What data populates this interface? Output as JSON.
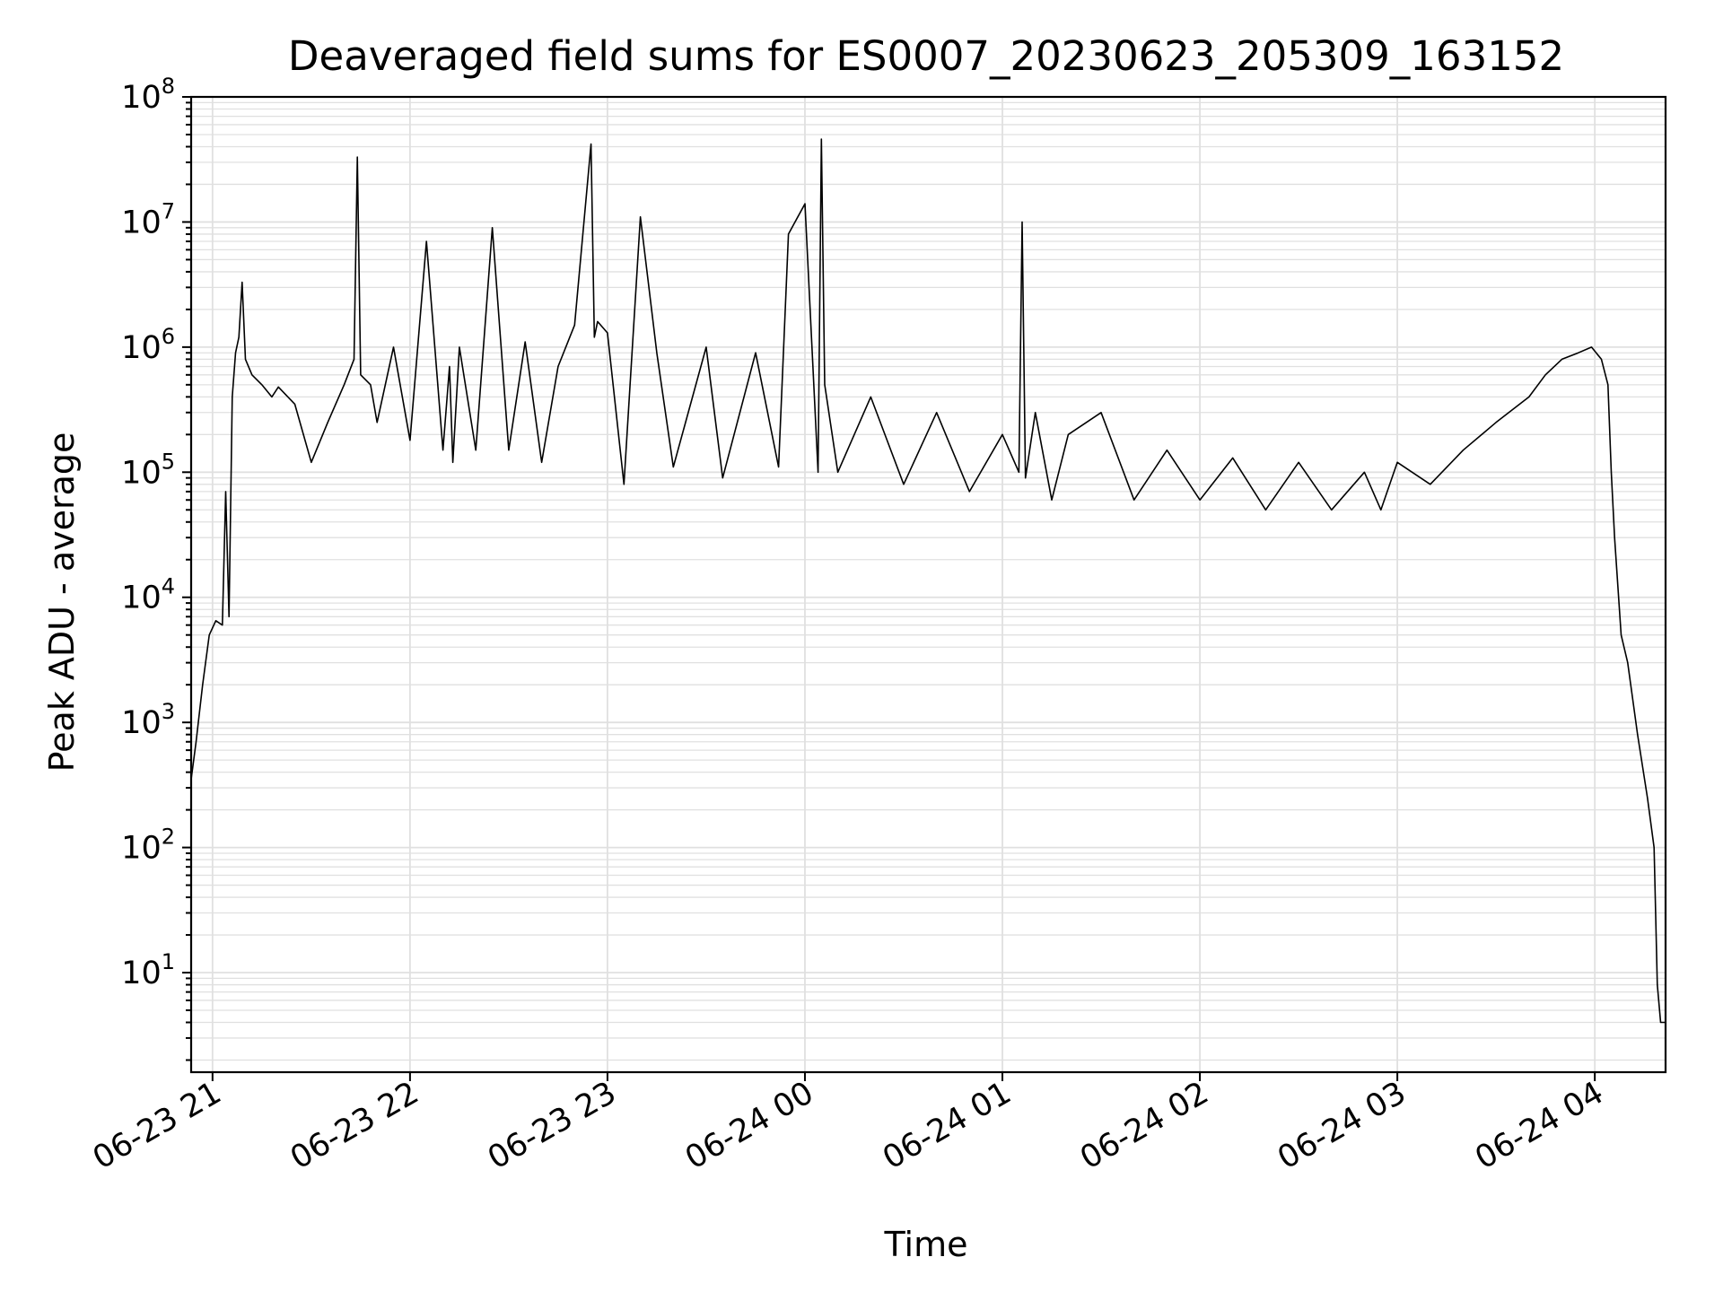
{
  "chart_data": {
    "type": "line",
    "title": "Deaveraged field sums for ES0007_20230623_205309_163152",
    "xlabel": "Time",
    "ylabel": "Peak ADU - average",
    "yscale": "log",
    "grid": true,
    "legend": "none",
    "line_color": "#000000",
    "grid_color": "#e0e0e0",
    "xlim": [
      "2023-06-23 20:53:30",
      "2023-06-24 04:21:30"
    ],
    "ylim": [
      1.6,
      100000000
    ],
    "x_tick_labels": [
      "06-23 21",
      "06-23 22",
      "06-23 23",
      "06-24 00",
      "06-24 01",
      "06-24 02",
      "06-24 03",
      "06-24 04"
    ],
    "y_tick_labels": [
      {
        "base": "10",
        "exp": "1"
      },
      {
        "base": "10",
        "exp": "2"
      },
      {
        "base": "10",
        "exp": "3"
      },
      {
        "base": "10",
        "exp": "4"
      },
      {
        "base": "10",
        "exp": "5"
      },
      {
        "base": "10",
        "exp": "6"
      },
      {
        "base": "10",
        "exp": "7"
      },
      {
        "base": "10",
        "exp": "8"
      }
    ],
    "series": [
      {
        "x": [
          "2023-06-23 20:53:30",
          "2023-06-23 20:55:00",
          "2023-06-23 20:57:00",
          "2023-06-23 20:59:00",
          "2023-06-23 21:01:00",
          "2023-06-23 21:03:00",
          "2023-06-23 21:04:00",
          "2023-06-23 21:05:00",
          "2023-06-23 21:06:00",
          "2023-06-23 21:07:00",
          "2023-06-23 21:08:00",
          "2023-06-23 21:09:00",
          "2023-06-23 21:10:00",
          "2023-06-23 21:12:00",
          "2023-06-23 21:15:00",
          "2023-06-23 21:18:00",
          "2023-06-23 21:20:00",
          "2023-06-23 21:25:00",
          "2023-06-23 21:30:00",
          "2023-06-23 21:35:00",
          "2023-06-23 21:40:00",
          "2023-06-23 21:43:00",
          "2023-06-23 21:44:00",
          "2023-06-23 21:45:00",
          "2023-06-23 21:48:00",
          "2023-06-23 21:50:00",
          "2023-06-23 21:55:00",
          "2023-06-23 22:00:00",
          "2023-06-23 22:05:00",
          "2023-06-23 22:10:00",
          "2023-06-23 22:12:00",
          "2023-06-23 22:13:00",
          "2023-06-23 22:15:00",
          "2023-06-23 22:20:00",
          "2023-06-23 22:25:00",
          "2023-06-23 22:30:00",
          "2023-06-23 22:35:00",
          "2023-06-23 22:40:00",
          "2023-06-23 22:45:00",
          "2023-06-23 22:50:00",
          "2023-06-23 22:55:00",
          "2023-06-23 22:56:00",
          "2023-06-23 22:57:00",
          "2023-06-23 23:00:00",
          "2023-06-23 23:05:00",
          "2023-06-23 23:10:00",
          "2023-06-23 23:15:00",
          "2023-06-23 23:20:00",
          "2023-06-23 23:30:00",
          "2023-06-23 23:35:00",
          "2023-06-23 23:45:00",
          "2023-06-23 23:52:00",
          "2023-06-23 23:55:00",
          "2023-06-24 00:00:00",
          "2023-06-24 00:04:00",
          "2023-06-24 00:05:00",
          "2023-06-24 00:06:00",
          "2023-06-24 00:10:00",
          "2023-06-24 00:20:00",
          "2023-06-24 00:30:00",
          "2023-06-24 00:40:00",
          "2023-06-24 00:50:00",
          "2023-06-24 01:00:00",
          "2023-06-24 01:05:00",
          "2023-06-24 01:06:00",
          "2023-06-24 01:07:00",
          "2023-06-24 01:10:00",
          "2023-06-24 01:15:00",
          "2023-06-24 01:20:00",
          "2023-06-24 01:30:00",
          "2023-06-24 01:40:00",
          "2023-06-24 01:50:00",
          "2023-06-24 02:00:00",
          "2023-06-24 02:10:00",
          "2023-06-24 02:20:00",
          "2023-06-24 02:30:00",
          "2023-06-24 02:40:00",
          "2023-06-24 02:50:00",
          "2023-06-24 02:55:00",
          "2023-06-24 03:00:00",
          "2023-06-24 03:10:00",
          "2023-06-24 03:20:00",
          "2023-06-24 03:30:00",
          "2023-06-24 03:40:00",
          "2023-06-24 03:45:00",
          "2023-06-24 03:50:00",
          "2023-06-24 03:55:00",
          "2023-06-24 03:59:00",
          "2023-06-24 04:02:00",
          "2023-06-24 04:04:00",
          "2023-06-24 04:05:00",
          "2023-06-24 04:06:00",
          "2023-06-24 04:08:00",
          "2023-06-24 04:10:00",
          "2023-06-24 04:13:00",
          "2023-06-24 04:16:00",
          "2023-06-24 04:18:00",
          "2023-06-24 04:19:00",
          "2023-06-24 04:20:00",
          "2023-06-24 04:21:30"
        ],
        "y": [
          350,
          700,
          2000,
          5000,
          6500,
          6000,
          70000,
          7000,
          400000,
          900000,
          1200000,
          3300000,
          800000,
          600000,
          500000,
          400000,
          480000,
          350000,
          120000,
          250000,
          500000,
          800000,
          33000000,
          600000,
          500000,
          250000,
          1000000,
          180000,
          7000000,
          150000,
          700000,
          120000,
          1000000,
          150000,
          9000000,
          150000,
          1100000,
          120000,
          700000,
          1500000,
          42000000,
          1200000,
          1600000,
          1300000,
          80000,
          11000000,
          900000,
          110000,
          1000000,
          90000,
          900000,
          110000,
          8000000,
          14000000,
          100000,
          46000000,
          500000,
          100000,
          400000,
          80000,
          300000,
          70000,
          200000,
          100000,
          10000000,
          90000,
          300000,
          60000,
          200000,
          300000,
          60000,
          150000,
          60000,
          130000,
          50000,
          120000,
          50000,
          100000,
          50000,
          120000,
          80000,
          150000,
          250000,
          400000,
          600000,
          800000,
          900000,
          1000000,
          800000,
          500000,
          100000,
          30000,
          5000,
          3000,
          800,
          250,
          100,
          8,
          4,
          4
        ]
      }
    ]
  }
}
